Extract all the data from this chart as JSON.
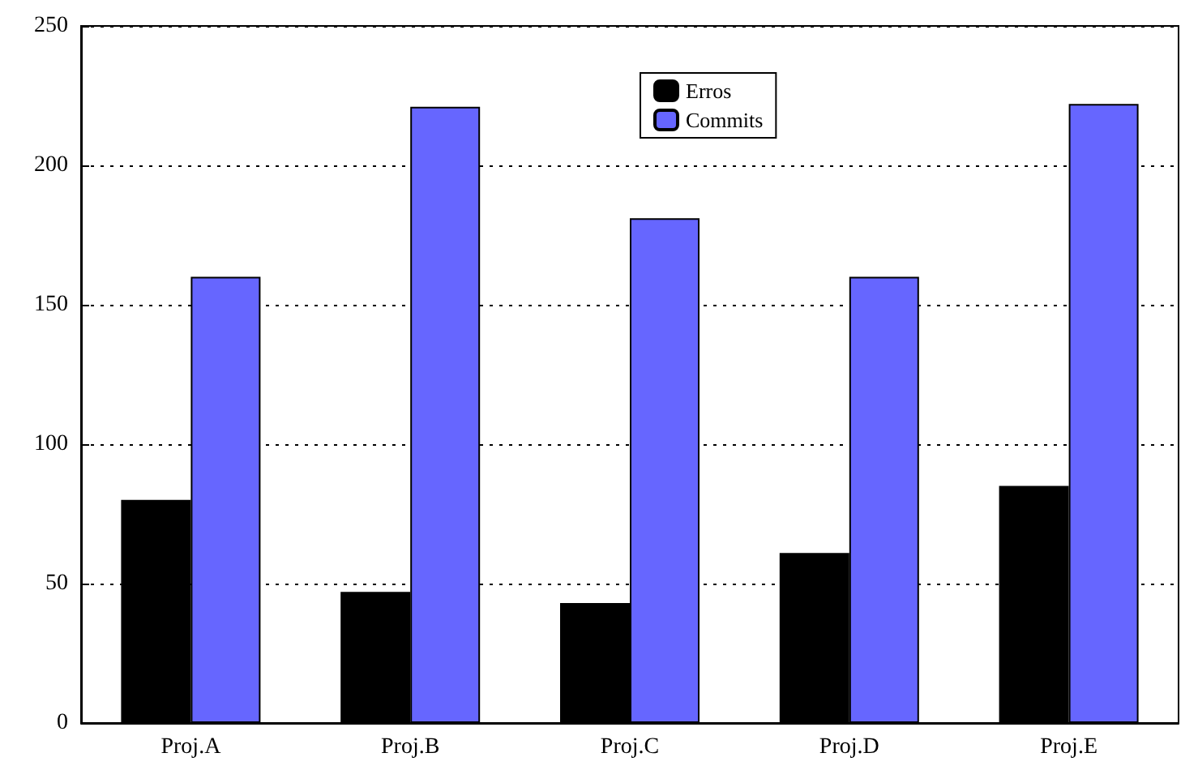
{
  "chart_data": {
    "type": "bar",
    "categories": [
      "Proj.A",
      "Proj.B",
      "Proj.C",
      "Proj.D",
      "Proj.E"
    ],
    "series": [
      {
        "name": "Erros",
        "color": "#000000",
        "values": [
          80,
          47,
          43,
          61,
          85
        ]
      },
      {
        "name": "Commits",
        "color": "#6666ff",
        "values": [
          160,
          221,
          181,
          160,
          222
        ]
      }
    ],
    "ylim": [
      0,
      250
    ],
    "yticks": [
      0,
      50,
      100,
      150,
      200,
      250
    ],
    "grid": "y",
    "legend": "top"
  }
}
